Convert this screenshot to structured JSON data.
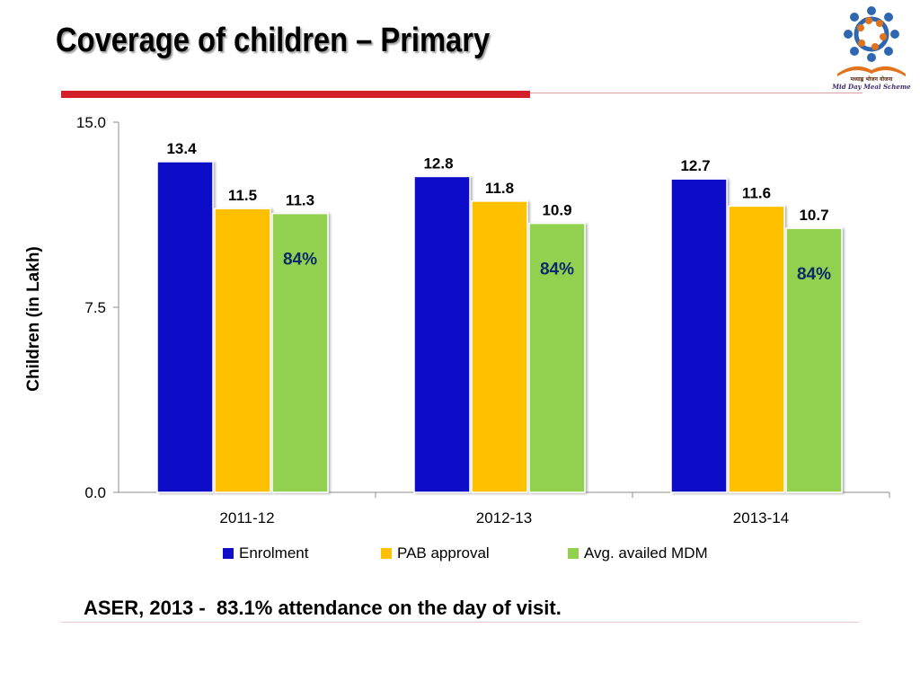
{
  "slide": {
    "title": "Coverage of children – Primary",
    "footnote": "ASER, 2013 -  83.1% attendance on the day of visit."
  },
  "logo": {
    "icon": "mid-day-meal-logo",
    "caption_hindi": "मध्याह्न भोजन योजना",
    "caption_english": "Mid Day Meal Scheme",
    "colors": {
      "people": "#2e66b0",
      "plates": "#e0731c",
      "book": "#e0731c"
    }
  },
  "chart_data": {
    "type": "bar",
    "categories": [
      "2011-12",
      "2012-13",
      "2013-14"
    ],
    "series": [
      {
        "name": "Enrolment",
        "values": [
          13.4,
          12.8,
          12.7
        ],
        "color": "#0e10c8"
      },
      {
        "name": "PAB approval",
        "values": [
          11.5,
          11.8,
          11.6
        ],
        "color": "#ffc000"
      },
      {
        "name": "Avg. availed MDM",
        "values": [
          11.3,
          10.9,
          10.7
        ],
        "color": "#92d050"
      }
    ],
    "annotations": [
      "84%",
      "84%",
      "84%"
    ],
    "annotation_series": "Avg. availed MDM",
    "annotation_color": "#0a2a6a",
    "ylabel": "Children (in Lakh)",
    "xlabel": "",
    "ylim": [
      0,
      15
    ],
    "yticks": [
      "0.0",
      "7.5",
      "15.0"
    ],
    "grid": false,
    "legend": "bottom"
  }
}
